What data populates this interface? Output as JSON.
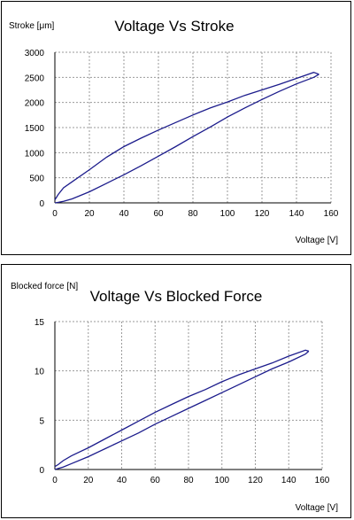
{
  "chart_data": [
    {
      "type": "line",
      "title": "Voltage Vs Stroke",
      "ylabel": "Stroke [μm]",
      "xlabel": "Voltage [V]",
      "xlim": [
        0,
        160
      ],
      "ylim": [
        0,
        3000
      ],
      "xticks": [
        0,
        20,
        40,
        60,
        80,
        100,
        120,
        140,
        160
      ],
      "yticks": [
        0,
        500,
        1000,
        1500,
        2000,
        2500,
        3000
      ],
      "grid": true,
      "series": [
        {
          "x": [
            0,
            2,
            5,
            10,
            20,
            30,
            40,
            50,
            60,
            70,
            80,
            90,
            100,
            110,
            120,
            130,
            140,
            150,
            153
          ],
          "y": [
            0,
            10,
            30,
            80,
            220,
            390,
            560,
            740,
            930,
            1120,
            1320,
            1510,
            1710,
            1890,
            2060,
            2220,
            2370,
            2500,
            2560
          ]
        },
        {
          "x": [
            153,
            150,
            140,
            130,
            120,
            110,
            100,
            90,
            80,
            70,
            60,
            50,
            40,
            30,
            20,
            10,
            5,
            2,
            0
          ],
          "y": [
            2560,
            2600,
            2480,
            2360,
            2250,
            2140,
            2010,
            1890,
            1750,
            1600,
            1450,
            1290,
            1120,
            910,
            660,
            420,
            300,
            170,
            60
          ]
        }
      ]
    },
    {
      "type": "line",
      "title": "Voltage Vs Blocked Force",
      "ylabel": "Blocked force [N]",
      "xlabel": "Voltage [V]",
      "xlim": [
        0,
        160
      ],
      "ylim": [
        0,
        15
      ],
      "xticks": [
        0,
        20,
        40,
        60,
        80,
        100,
        120,
        140,
        160
      ],
      "yticks": [
        0,
        5,
        10,
        15
      ],
      "grid": true,
      "series": [
        {
          "x": [
            0,
            2,
            5,
            10,
            20,
            30,
            40,
            50,
            60,
            70,
            80,
            90,
            100,
            110,
            120,
            130,
            140,
            150,
            152
          ],
          "y": [
            0,
            0.1,
            0.25,
            0.6,
            1.3,
            2.1,
            2.9,
            3.7,
            4.6,
            5.4,
            6.2,
            7.0,
            7.8,
            8.6,
            9.4,
            10.2,
            10.9,
            11.7,
            12.0
          ]
        },
        {
          "x": [
            152,
            150,
            140,
            130,
            120,
            110,
            100,
            90,
            80,
            70,
            60,
            50,
            40,
            30,
            20,
            10,
            5,
            2,
            0
          ],
          "y": [
            12.0,
            12.1,
            11.5,
            10.8,
            10.2,
            9.6,
            8.9,
            8.1,
            7.4,
            6.6,
            5.8,
            4.9,
            4.0,
            3.1,
            2.2,
            1.4,
            0.9,
            0.5,
            0.3
          ]
        }
      ]
    }
  ]
}
